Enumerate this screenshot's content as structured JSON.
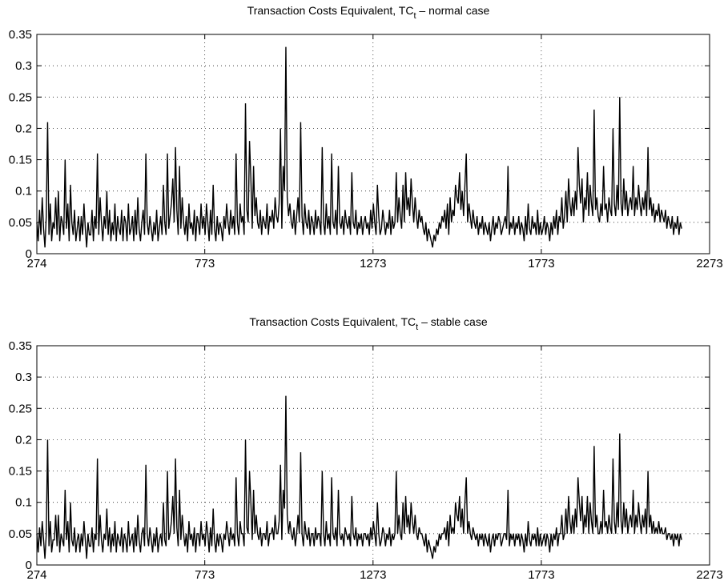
{
  "chart_data": [
    {
      "type": "line",
      "title_prefix": "Transaction Costs Equivalent, TC",
      "title_sub": "t",
      "title_suffix": " – normal case",
      "xlabel": "",
      "ylabel": "",
      "xlim": [
        274,
        2273
      ],
      "ylim": [
        0,
        0.35
      ],
      "x_ticks": [
        "274",
        "773",
        "1273",
        "1773",
        "2273"
      ],
      "y_ticks": [
        "0",
        "0.05",
        "0.1",
        "0.15",
        "0.2",
        "0.25",
        "0.3",
        "0.35"
      ],
      "grid": true,
      "series": [
        {
          "color": "#000000",
          "x_start": 274,
          "x_step": 4,
          "values": [
            0.05,
            0.02,
            0.07,
            0.03,
            0.09,
            0.04,
            0.01,
            0.06,
            0.21,
            0.03,
            0.08,
            0.02,
            0.05,
            0.04,
            0.09,
            0.03,
            0.1,
            0.02,
            0.06,
            0.05,
            0.03,
            0.15,
            0.04,
            0.08,
            0.02,
            0.11,
            0.05,
            0.03,
            0.07,
            0.02,
            0.04,
            0.06,
            0.02,
            0.06,
            0.03,
            0.08,
            0.04,
            0.01,
            0.05,
            0.03,
            0.03,
            0.07,
            0.02,
            0.06,
            0.04,
            0.16,
            0.03,
            0.09,
            0.05,
            0.02,
            0.06,
            0.04,
            0.1,
            0.03,
            0.07,
            0.02,
            0.05,
            0.03,
            0.08,
            0.02,
            0.06,
            0.04,
            0.03,
            0.07,
            0.02,
            0.06,
            0.05,
            0.02,
            0.08,
            0.03,
            0.04,
            0.06,
            0.02,
            0.07,
            0.03,
            0.09,
            0.04,
            0.02,
            0.05,
            0.07,
            0.03,
            0.16,
            0.05,
            0.03,
            0.06,
            0.04,
            0.02,
            0.05,
            0.03,
            0.07,
            0.02,
            0.04,
            0.06,
            0.03,
            0.11,
            0.05,
            0.03,
            0.16,
            0.04,
            0.06,
            0.08,
            0.12,
            0.05,
            0.17,
            0.07,
            0.03,
            0.14,
            0.04,
            0.09,
            0.05,
            0.03,
            0.06,
            0.02,
            0.08,
            0.04,
            0.05,
            0.03,
            0.07,
            0.02,
            0.06,
            0.05,
            0.03,
            0.08,
            0.04,
            0.06,
            0.03,
            0.08,
            0.05,
            0.02,
            0.07,
            0.03,
            0.11,
            0.04,
            0.02,
            0.06,
            0.03,
            0.05,
            0.04,
            0.02,
            0.06,
            0.04,
            0.08,
            0.05,
            0.03,
            0.07,
            0.04,
            0.06,
            0.03,
            0.16,
            0.05,
            0.03,
            0.08,
            0.05,
            0.06,
            0.03,
            0.24,
            0.07,
            0.05,
            0.18,
            0.12,
            0.04,
            0.14,
            0.06,
            0.09,
            0.05,
            0.04,
            0.07,
            0.03,
            0.06,
            0.05,
            0.04,
            0.08,
            0.03,
            0.06,
            0.05,
            0.07,
            0.04,
            0.09,
            0.06,
            0.05,
            0.08,
            0.2,
            0.04,
            0.14,
            0.1,
            0.33,
            0.09,
            0.06,
            0.08,
            0.05,
            0.04,
            0.07,
            0.03,
            0.06,
            0.09,
            0.05,
            0.21,
            0.06,
            0.03,
            0.08,
            0.05,
            0.04,
            0.07,
            0.03,
            0.06,
            0.05,
            0.03,
            0.07,
            0.04,
            0.06,
            0.05,
            0.03,
            0.17,
            0.05,
            0.03,
            0.08,
            0.04,
            0.06,
            0.03,
            0.16,
            0.05,
            0.04,
            0.07,
            0.03,
            0.14,
            0.05,
            0.04,
            0.06,
            0.03,
            0.07,
            0.05,
            0.04,
            0.06,
            0.03,
            0.13,
            0.05,
            0.04,
            0.07,
            0.03,
            0.05,
            0.04,
            0.06,
            0.03,
            0.05,
            0.06,
            0.04,
            0.05,
            0.03,
            0.07,
            0.04,
            0.08,
            0.05,
            0.03,
            0.11,
            0.06,
            0.03,
            0.04,
            0.07,
            0.05,
            0.03,
            0.05,
            0.04,
            0.07,
            0.03,
            0.06,
            0.04,
            0.05,
            0.13,
            0.05,
            0.09,
            0.06,
            0.04,
            0.11,
            0.05,
            0.13,
            0.07,
            0.09,
            0.06,
            0.12,
            0.08,
            0.05,
            0.09,
            0.06,
            0.04,
            0.07,
            0.05,
            0.06,
            0.04,
            0.03,
            0.05,
            0.02,
            0.04,
            0.03,
            0.02,
            0.01,
            0.03,
            0.02,
            0.04,
            0.03,
            0.05,
            0.04,
            0.06,
            0.05,
            0.07,
            0.04,
            0.08,
            0.03,
            0.09,
            0.05,
            0.07,
            0.06,
            0.11,
            0.09,
            0.08,
            0.13,
            0.07,
            0.1,
            0.06,
            0.11,
            0.16,
            0.05,
            0.08,
            0.06,
            0.04,
            0.07,
            0.05,
            0.04,
            0.06,
            0.03,
            0.05,
            0.04,
            0.06,
            0.03,
            0.05,
            0.04,
            0.03,
            0.05,
            0.02,
            0.04,
            0.06,
            0.03,
            0.05,
            0.04,
            0.06,
            0.05,
            0.03,
            0.04,
            0.05,
            0.06,
            0.04,
            0.14,
            0.03,
            0.05,
            0.04,
            0.06,
            0.03,
            0.05,
            0.04,
            0.06,
            0.03,
            0.05,
            0.04,
            0.02,
            0.06,
            0.03,
            0.08,
            0.04,
            0.03,
            0.06,
            0.04,
            0.05,
            0.03,
            0.07,
            0.03,
            0.05,
            0.03,
            0.04,
            0.06,
            0.03,
            0.05,
            0.04,
            0.02,
            0.05,
            0.03,
            0.06,
            0.04,
            0.07,
            0.03,
            0.06,
            0.05,
            0.09,
            0.04,
            0.06,
            0.1,
            0.05,
            0.12,
            0.08,
            0.06,
            0.09,
            0.06,
            0.1,
            0.07,
            0.17,
            0.11,
            0.08,
            0.12,
            0.05,
            0.09,
            0.07,
            0.13,
            0.06,
            0.11,
            0.08,
            0.06,
            0.23,
            0.07,
            0.09,
            0.06,
            0.05,
            0.08,
            0.06,
            0.14,
            0.07,
            0.08,
            0.05,
            0.09,
            0.07,
            0.06,
            0.2,
            0.08,
            0.06,
            0.11,
            0.07,
            0.25,
            0.08,
            0.06,
            0.12,
            0.07,
            0.1,
            0.06,
            0.08,
            0.09,
            0.07,
            0.14,
            0.06,
            0.09,
            0.07,
            0.11,
            0.08,
            0.06,
            0.09,
            0.07,
            0.1,
            0.06,
            0.17,
            0.07,
            0.09,
            0.06,
            0.08,
            0.05,
            0.07,
            0.06,
            0.08,
            0.05,
            0.07,
            0.06,
            0.05,
            0.07,
            0.04,
            0.06,
            0.05,
            0.04,
            0.06,
            0.03,
            0.05,
            0.04,
            0.06,
            0.03,
            0.05,
            0.04
          ]
        }
      ]
    },
    {
      "type": "line",
      "title_prefix": "Transaction Costs Equivalent, TC",
      "title_sub": "t",
      "title_suffix": " – stable case",
      "xlabel": "",
      "ylabel": "",
      "xlim": [
        274,
        2273
      ],
      "ylim": [
        0,
        0.35
      ],
      "x_ticks": [
        "274",
        "773",
        "1273",
        "1773",
        "2273"
      ],
      "y_ticks": [
        "0",
        "0.05",
        "0.1",
        "0.15",
        "0.2",
        "0.25",
        "0.3",
        "0.35"
      ],
      "grid": true,
      "series": [
        {
          "color": "#000000",
          "x_start": 274,
          "x_step": 4,
          "values": [
            0.05,
            0.02,
            0.06,
            0.03,
            0.07,
            0.04,
            0.01,
            0.05,
            0.2,
            0.03,
            0.07,
            0.02,
            0.04,
            0.04,
            0.08,
            0.03,
            0.08,
            0.02,
            0.05,
            0.04,
            0.03,
            0.12,
            0.04,
            0.07,
            0.02,
            0.1,
            0.04,
            0.03,
            0.06,
            0.02,
            0.04,
            0.05,
            0.02,
            0.05,
            0.03,
            0.07,
            0.04,
            0.01,
            0.05,
            0.03,
            0.03,
            0.06,
            0.02,
            0.05,
            0.04,
            0.17,
            0.03,
            0.08,
            0.04,
            0.02,
            0.05,
            0.04,
            0.09,
            0.03,
            0.06,
            0.02,
            0.05,
            0.03,
            0.07,
            0.02,
            0.05,
            0.04,
            0.03,
            0.06,
            0.02,
            0.05,
            0.04,
            0.02,
            0.07,
            0.03,
            0.04,
            0.05,
            0.02,
            0.06,
            0.03,
            0.08,
            0.04,
            0.02,
            0.05,
            0.06,
            0.03,
            0.16,
            0.05,
            0.03,
            0.06,
            0.04,
            0.02,
            0.05,
            0.03,
            0.06,
            0.02,
            0.04,
            0.05,
            0.03,
            0.1,
            0.04,
            0.03,
            0.15,
            0.04,
            0.05,
            0.07,
            0.11,
            0.05,
            0.17,
            0.06,
            0.03,
            0.12,
            0.04,
            0.08,
            0.05,
            0.03,
            0.05,
            0.02,
            0.07,
            0.04,
            0.05,
            0.03,
            0.06,
            0.02,
            0.05,
            0.05,
            0.03,
            0.07,
            0.04,
            0.05,
            0.03,
            0.07,
            0.05,
            0.02,
            0.06,
            0.03,
            0.09,
            0.04,
            0.02,
            0.05,
            0.03,
            0.05,
            0.04,
            0.02,
            0.05,
            0.04,
            0.07,
            0.05,
            0.03,
            0.06,
            0.04,
            0.05,
            0.03,
            0.14,
            0.05,
            0.03,
            0.07,
            0.05,
            0.05,
            0.03,
            0.2,
            0.06,
            0.05,
            0.15,
            0.1,
            0.04,
            0.12,
            0.05,
            0.08,
            0.05,
            0.04,
            0.06,
            0.03,
            0.05,
            0.05,
            0.04,
            0.07,
            0.03,
            0.05,
            0.05,
            0.06,
            0.04,
            0.08,
            0.05,
            0.05,
            0.07,
            0.16,
            0.04,
            0.12,
            0.09,
            0.27,
            0.08,
            0.05,
            0.07,
            0.05,
            0.04,
            0.06,
            0.03,
            0.05,
            0.08,
            0.05,
            0.18,
            0.05,
            0.03,
            0.07,
            0.05,
            0.04,
            0.06,
            0.03,
            0.05,
            0.05,
            0.03,
            0.06,
            0.04,
            0.05,
            0.05,
            0.03,
            0.15,
            0.05,
            0.03,
            0.07,
            0.04,
            0.05,
            0.03,
            0.14,
            0.05,
            0.04,
            0.06,
            0.03,
            0.12,
            0.05,
            0.04,
            0.05,
            0.03,
            0.06,
            0.05,
            0.04,
            0.05,
            0.03,
            0.11,
            0.05,
            0.04,
            0.06,
            0.03,
            0.05,
            0.04,
            0.05,
            0.03,
            0.05,
            0.05,
            0.04,
            0.05,
            0.03,
            0.06,
            0.04,
            0.07,
            0.05,
            0.03,
            0.1,
            0.05,
            0.03,
            0.04,
            0.06,
            0.05,
            0.03,
            0.05,
            0.04,
            0.06,
            0.03,
            0.05,
            0.04,
            0.05,
            0.15,
            0.05,
            0.08,
            0.05,
            0.04,
            0.1,
            0.05,
            0.11,
            0.06,
            0.08,
            0.05,
            0.1,
            0.07,
            0.05,
            0.08,
            0.05,
            0.04,
            0.06,
            0.05,
            0.05,
            0.04,
            0.03,
            0.05,
            0.02,
            0.04,
            0.03,
            0.02,
            0.01,
            0.03,
            0.02,
            0.04,
            0.03,
            0.05,
            0.04,
            0.05,
            0.05,
            0.06,
            0.04,
            0.07,
            0.03,
            0.08,
            0.05,
            0.06,
            0.05,
            0.1,
            0.08,
            0.07,
            0.11,
            0.06,
            0.09,
            0.05,
            0.1,
            0.14,
            0.05,
            0.07,
            0.05,
            0.04,
            0.06,
            0.05,
            0.04,
            0.05,
            0.03,
            0.05,
            0.04,
            0.05,
            0.03,
            0.05,
            0.04,
            0.03,
            0.05,
            0.02,
            0.04,
            0.05,
            0.03,
            0.05,
            0.04,
            0.05,
            0.05,
            0.03,
            0.04,
            0.05,
            0.05,
            0.04,
            0.12,
            0.03,
            0.05,
            0.04,
            0.05,
            0.03,
            0.05,
            0.04,
            0.05,
            0.03,
            0.05,
            0.04,
            0.02,
            0.05,
            0.03,
            0.07,
            0.04,
            0.03,
            0.05,
            0.04,
            0.05,
            0.03,
            0.06,
            0.03,
            0.05,
            0.03,
            0.04,
            0.05,
            0.03,
            0.05,
            0.04,
            0.02,
            0.05,
            0.03,
            0.05,
            0.04,
            0.06,
            0.03,
            0.05,
            0.05,
            0.08,
            0.04,
            0.05,
            0.09,
            0.05,
            0.11,
            0.07,
            0.05,
            0.08,
            0.05,
            0.09,
            0.06,
            0.14,
            0.1,
            0.07,
            0.11,
            0.05,
            0.08,
            0.06,
            0.11,
            0.05,
            0.1,
            0.07,
            0.05,
            0.19,
            0.06,
            0.08,
            0.05,
            0.05,
            0.07,
            0.05,
            0.12,
            0.06,
            0.07,
            0.05,
            0.08,
            0.06,
            0.05,
            0.17,
            0.07,
            0.05,
            0.1,
            0.06,
            0.21,
            0.07,
            0.05,
            0.1,
            0.06,
            0.09,
            0.05,
            0.07,
            0.08,
            0.06,
            0.12,
            0.05,
            0.08,
            0.06,
            0.1,
            0.07,
            0.05,
            0.08,
            0.06,
            0.09,
            0.05,
            0.15,
            0.06,
            0.08,
            0.05,
            0.07,
            0.05,
            0.06,
            0.05,
            0.07,
            0.05,
            0.06,
            0.05,
            0.05,
            0.06,
            0.04,
            0.05,
            0.05,
            0.04,
            0.05,
            0.03,
            0.05,
            0.04,
            0.05,
            0.03,
            0.05,
            0.04
          ]
        }
      ]
    }
  ]
}
